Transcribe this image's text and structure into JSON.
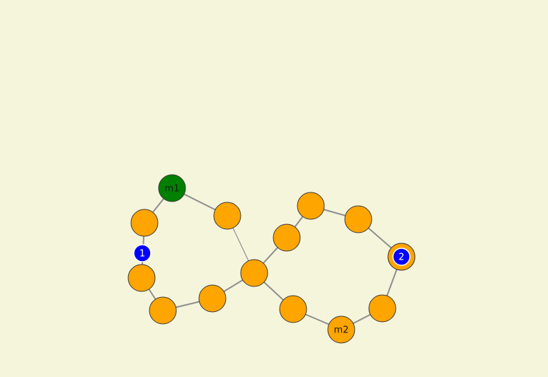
{
  "colors": {
    "background": "#f5f5dc",
    "node_default": "#ffa500",
    "node_start": "#008000",
    "node_marker": "#0000ff",
    "edge": "#8e8e8e",
    "label_dark": "#1a1a1a",
    "label_light": "#ffffff"
  },
  "graph": {
    "nodes": [
      {
        "id": "m1",
        "label": "m1",
        "kind": "start"
      },
      {
        "id": "a",
        "label": "",
        "kind": "default"
      },
      {
        "id": "b",
        "label": "",
        "kind": "default"
      },
      {
        "id": "c",
        "label": "",
        "kind": "default"
      },
      {
        "id": "d",
        "label": "",
        "kind": "default"
      },
      {
        "id": "e",
        "label": "",
        "kind": "default"
      },
      {
        "id": "center",
        "label": "",
        "kind": "default"
      },
      {
        "id": "f",
        "label": "",
        "kind": "default"
      },
      {
        "id": "g",
        "label": "",
        "kind": "default"
      },
      {
        "id": "h",
        "label": "",
        "kind": "default"
      },
      {
        "id": "i",
        "label": "",
        "kind": "default"
      },
      {
        "id": "j",
        "label": "",
        "kind": "default"
      },
      {
        "id": "k",
        "label": "",
        "kind": "default"
      },
      {
        "id": "m2",
        "label": "m2",
        "kind": "default"
      },
      {
        "id": "l",
        "label": "",
        "kind": "default"
      }
    ],
    "markers": [
      {
        "id": "marker1",
        "label": "1",
        "kind": "marker"
      },
      {
        "id": "marker2",
        "label": "2",
        "kind": "marker-ringed"
      }
    ],
    "edges": [
      [
        "m1",
        "a"
      ],
      [
        "m1",
        "b"
      ],
      [
        "a",
        "c"
      ],
      [
        "c",
        "d"
      ],
      [
        "d",
        "e"
      ],
      [
        "e",
        "center"
      ],
      [
        "b",
        "center"
      ],
      [
        "center",
        "f"
      ],
      [
        "f",
        "g"
      ],
      [
        "g",
        "h"
      ],
      [
        "h",
        "i"
      ],
      [
        "i",
        "j"
      ],
      [
        "j",
        "k"
      ],
      [
        "k",
        "m2"
      ],
      [
        "m2",
        "l"
      ],
      [
        "l",
        "center"
      ]
    ]
  }
}
